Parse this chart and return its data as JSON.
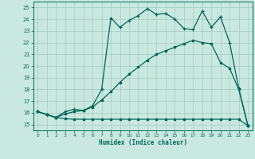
{
  "xlabel": "Humidex (Indice chaleur)",
  "bg_color": "#c9e8e0",
  "grid_color": "#a8cfc8",
  "line_color": "#006655",
  "xlim": [
    -0.5,
    23.5
  ],
  "ylim": [
    14.5,
    25.5
  ],
  "xticks": [
    0,
    1,
    2,
    3,
    4,
    5,
    6,
    7,
    8,
    9,
    10,
    11,
    12,
    13,
    14,
    15,
    16,
    17,
    18,
    19,
    20,
    21,
    22,
    23
  ],
  "yticks": [
    15,
    16,
    17,
    18,
    19,
    20,
    21,
    22,
    23,
    24,
    25
  ],
  "line1_x": [
    0,
    1,
    2,
    3,
    4,
    5,
    6,
    7,
    8,
    9,
    10,
    11,
    12,
    13,
    14,
    15,
    16,
    17,
    18,
    19,
    20,
    21,
    22,
    23
  ],
  "line1_y": [
    16.1,
    15.85,
    15.6,
    15.5,
    15.45,
    15.45,
    15.45,
    15.45,
    15.45,
    15.45,
    15.45,
    15.45,
    15.45,
    15.45,
    15.45,
    15.45,
    15.45,
    15.45,
    15.45,
    15.45,
    15.45,
    15.45,
    15.45,
    14.9
  ],
  "line2_x": [
    0,
    1,
    2,
    3,
    4,
    5,
    6,
    7,
    8,
    9,
    10,
    11,
    12,
    13,
    14,
    15,
    16,
    17,
    18,
    19,
    20,
    21,
    22,
    23
  ],
  "line2_y": [
    16.1,
    15.85,
    15.6,
    15.9,
    16.1,
    16.2,
    16.5,
    17.1,
    17.8,
    18.6,
    19.3,
    19.9,
    20.5,
    21.0,
    21.3,
    21.6,
    21.9,
    22.2,
    22.0,
    21.9,
    20.3,
    19.8,
    18.0,
    14.9
  ],
  "line3_x": [
    0,
    1,
    2,
    3,
    4,
    5,
    6,
    7,
    8,
    9,
    10,
    11,
    12,
    13,
    14,
    15,
    16,
    17,
    18,
    19,
    20,
    21,
    22,
    23
  ],
  "line3_y": [
    16.1,
    15.85,
    15.6,
    16.1,
    16.3,
    16.2,
    16.6,
    18.0,
    24.1,
    23.3,
    23.9,
    24.3,
    24.9,
    24.4,
    24.5,
    24.0,
    23.2,
    23.1,
    24.7,
    23.3,
    24.2,
    22.0,
    18.1,
    14.9
  ]
}
